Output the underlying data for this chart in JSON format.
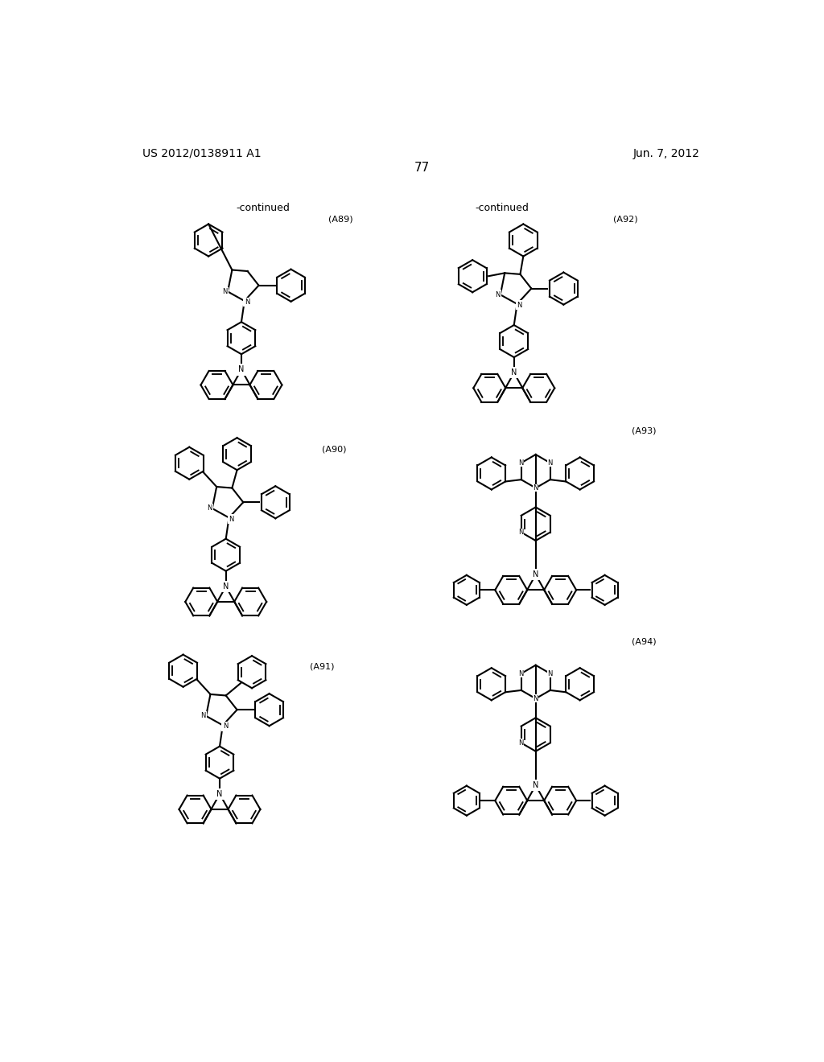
{
  "background_color": "#ffffff",
  "page_number": "77",
  "left_header": "US 2012/0138911 A1",
  "right_header": "Jun. 7, 2012",
  "continued_left": "-continued",
  "continued_right": "-continued",
  "label_A89": "(A89)",
  "label_A90": "(A90)",
  "label_A91": "(A91)",
  "label_A92": "(A92)",
  "label_A93": "(A93)",
  "label_A94": "(A94)",
  "text_color": "#000000",
  "line_color": "#000000",
  "line_width": 1.5,
  "font_size_header": 10,
  "font_size_label": 8,
  "font_size_atom": 7
}
